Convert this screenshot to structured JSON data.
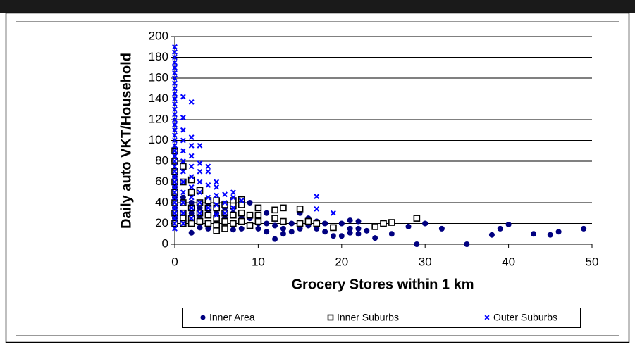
{
  "chart_data": {
    "type": "scatter",
    "xlabel": "Grocery Stores within 1 km",
    "ylabel": "Daily auto VKT/Household",
    "xlim": [
      0,
      50
    ],
    "xticks": [
      0,
      10,
      20,
      30,
      40,
      50
    ],
    "ylim": [
      0,
      200
    ],
    "yticks": [
      0,
      20,
      40,
      60,
      80,
      100,
      120,
      140,
      160,
      180,
      200
    ],
    "grid": true,
    "legend": "bottom",
    "series": [
      {
        "name": "Inner Area",
        "color": "#000080",
        "marker": "circle",
        "x": [
          0,
          0,
          0,
          0,
          0,
          1,
          1,
          1,
          2,
          2,
          2,
          2,
          3,
          3,
          3,
          4,
          4,
          4,
          4,
          5,
          5,
          6,
          6,
          6,
          7,
          7,
          7,
          8,
          8,
          9,
          9,
          9,
          10,
          10,
          11,
          11,
          11,
          12,
          12,
          12,
          13,
          13,
          13,
          14,
          14,
          15,
          15,
          15,
          16,
          16,
          17,
          17,
          18,
          18,
          19,
          20,
          20,
          21,
          21,
          21,
          22,
          22,
          22,
          23,
          24,
          26,
          28,
          29,
          30,
          32,
          35,
          38,
          39,
          40,
          43,
          45,
          46,
          49
        ],
        "values": [
          65,
          55,
          45,
          35,
          25,
          45,
          30,
          20,
          40,
          30,
          20,
          11,
          35,
          25,
          16,
          40,
          30,
          20,
          15,
          30,
          20,
          35,
          25,
          15,
          30,
          20,
          14,
          25,
          15,
          40,
          25,
          18,
          20,
          15,
          30,
          20,
          12,
          25,
          18,
          5,
          22,
          15,
          10,
          20,
          12,
          30,
          20,
          15,
          25,
          18,
          22,
          15,
          20,
          12,
          8,
          20,
          8,
          23,
          15,
          11,
          22,
          15,
          10,
          13,
          6,
          10,
          17,
          0,
          20,
          15,
          0,
          9,
          15,
          19,
          10,
          9,
          12,
          15
        ]
      },
      {
        "name": "Inner Suburbs",
        "color": "#000000",
        "marker": "square",
        "x": [
          0,
          0,
          0,
          0,
          0,
          0,
          0,
          0,
          1,
          1,
          1,
          1,
          1,
          1,
          2,
          2,
          2,
          2,
          2,
          3,
          3,
          3,
          3,
          4,
          4,
          4,
          4,
          5,
          5,
          5,
          5,
          5,
          6,
          6,
          6,
          6,
          7,
          7,
          7,
          7,
          8,
          8,
          8,
          8,
          9,
          9,
          10,
          10,
          10,
          12,
          12,
          13,
          13,
          15,
          15,
          16,
          17,
          19,
          24,
          25,
          26,
          29
        ],
        "values": [
          90,
          80,
          70,
          60,
          50,
          40,
          30,
          20,
          75,
          60,
          40,
          30,
          25,
          20,
          62,
          50,
          35,
          25,
          20,
          52,
          40,
          30,
          22,
          42,
          35,
          28,
          20,
          42,
          35,
          25,
          18,
          13,
          38,
          30,
          22,
          15,
          42,
          37,
          28,
          20,
          43,
          38,
          30,
          22,
          28,
          18,
          35,
          28,
          22,
          33,
          25,
          35,
          22,
          34,
          20,
          22,
          20,
          16,
          17,
          20,
          21,
          25
        ]
      },
      {
        "name": "Outer Suburbs",
        "color": "#0000ff",
        "marker": "x",
        "x": [
          0,
          0,
          0,
          0,
          0,
          0,
          0,
          0,
          0,
          0,
          0,
          0,
          0,
          0,
          0,
          0,
          0,
          0,
          0,
          0,
          0,
          0,
          0,
          0,
          0,
          0,
          0,
          0,
          0,
          0,
          0,
          0,
          0,
          0,
          0,
          0,
          1,
          1,
          1,
          1,
          1,
          1,
          1,
          1,
          1,
          1,
          1,
          1,
          2,
          2,
          2,
          2,
          2,
          2,
          2,
          2,
          2,
          2,
          3,
          3,
          3,
          3,
          3,
          3,
          3,
          4,
          4,
          4,
          4,
          4,
          5,
          5,
          5,
          5,
          5,
          6,
          6,
          6,
          7,
          7,
          7,
          8,
          17,
          17,
          19
        ],
        "values": [
          190,
          185,
          180,
          175,
          170,
          165,
          160,
          155,
          150,
          145,
          140,
          135,
          130,
          125,
          120,
          115,
          110,
          105,
          100,
          95,
          90,
          85,
          80,
          75,
          70,
          65,
          60,
          55,
          50,
          45,
          40,
          35,
          30,
          25,
          20,
          15,
          142,
          122,
          110,
          100,
          90,
          80,
          70,
          60,
          50,
          40,
          30,
          20,
          137,
          103,
          95,
          85,
          75,
          65,
          55,
          45,
          35,
          25,
          95,
          78,
          70,
          60,
          50,
          40,
          30,
          75,
          70,
          57,
          45,
          35,
          60,
          55,
          47,
          38,
          28,
          48,
          40,
          30,
          50,
          45,
          35,
          42,
          46,
          34,
          30
        ]
      }
    ]
  }
}
